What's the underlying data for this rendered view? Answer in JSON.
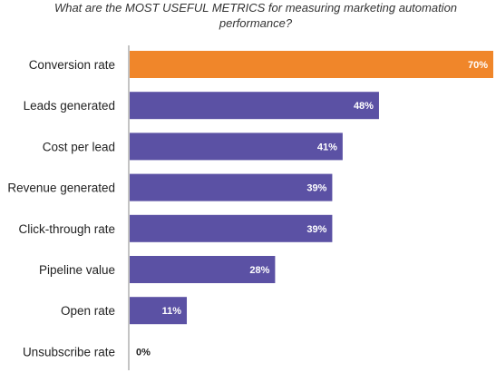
{
  "chart_data": {
    "type": "bar",
    "orientation": "horizontal",
    "title_lines": [
      "What are the MOST USEFUL METRICS for measuring marketing automation",
      "performance?"
    ],
    "categories": [
      "Conversion rate",
      "Leads generated",
      "Cost per lead",
      "Revenue generated",
      "Click-through rate",
      "Pipeline value",
      "Open rate",
      "Unsubscribe rate"
    ],
    "values": [
      70,
      48,
      41,
      39,
      39,
      28,
      11,
      0
    ],
    "value_labels": [
      "70%",
      "48%",
      "41%",
      "39%",
      "39%",
      "28%",
      "11%",
      "0%"
    ],
    "highlight_index": 0,
    "xlim": [
      0,
      70
    ],
    "grid": false,
    "legend": "none",
    "colors": {
      "highlight": "#F0862A",
      "bar": "#5B51A4",
      "axis": "#888888",
      "label_inside": "#FFFFFF",
      "label_outside": "#222222"
    }
  }
}
